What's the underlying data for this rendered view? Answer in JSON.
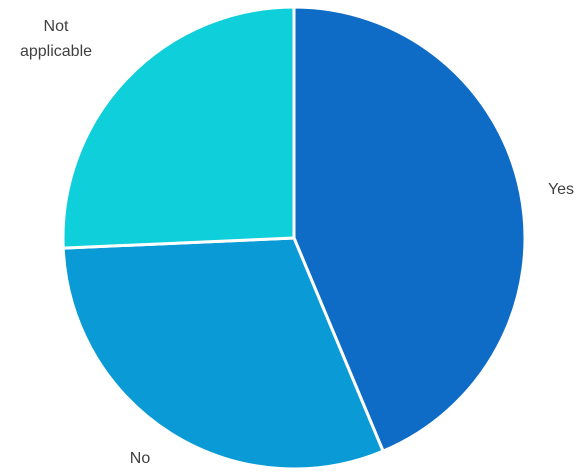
{
  "chart_data": {
    "type": "pie",
    "title": "",
    "slices": [
      {
        "label": "Yes",
        "value": 43.7,
        "color": "#0F6CC6"
      },
      {
        "label": "No",
        "value": 30.6,
        "color": "#0A9BD6"
      },
      {
        "label": "Not applicable",
        "value": 25.7,
        "color": "#0FCFDA"
      }
    ],
    "start_angle_deg": 0,
    "direction": "clockwise",
    "slice_border_color": "#FFFFFF"
  }
}
